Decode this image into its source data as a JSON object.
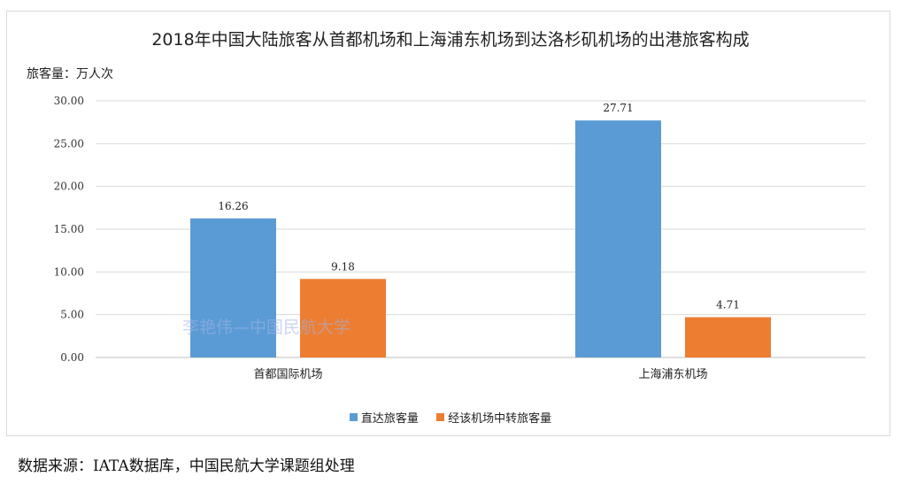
{
  "chart_data": {
    "type": "bar",
    "title": "2018年中国大陆旅客从首都机场和上海浦东机场到达洛杉矶机场的出港旅客构成",
    "ylabel": "旅客量：万人次",
    "xlabel": "",
    "categories": [
      "首都国际机场",
      "上海浦东机场"
    ],
    "series": [
      {
        "name": "直达旅客量",
        "values": [
          16.26,
          27.71
        ],
        "labels": [
          "16.26",
          "27.71"
        ],
        "color": "#5b9bd5"
      },
      {
        "name": "经该机场中转旅客量",
        "values": [
          9.18,
          4.71
        ],
        "labels": [
          "9.18",
          "4.71"
        ],
        "color": "#ed7d31"
      }
    ],
    "ylim": [
      0,
      30
    ],
    "yticks": [
      "0.00",
      "5.00",
      "10.00",
      "15.00",
      "20.00",
      "25.00",
      "30.00"
    ],
    "grid": true,
    "legend_position": "bottom"
  },
  "watermark": "李艳伟—中国民航大学",
  "source": "数据来源：IATA数据库，中国民航大学课题组处理"
}
